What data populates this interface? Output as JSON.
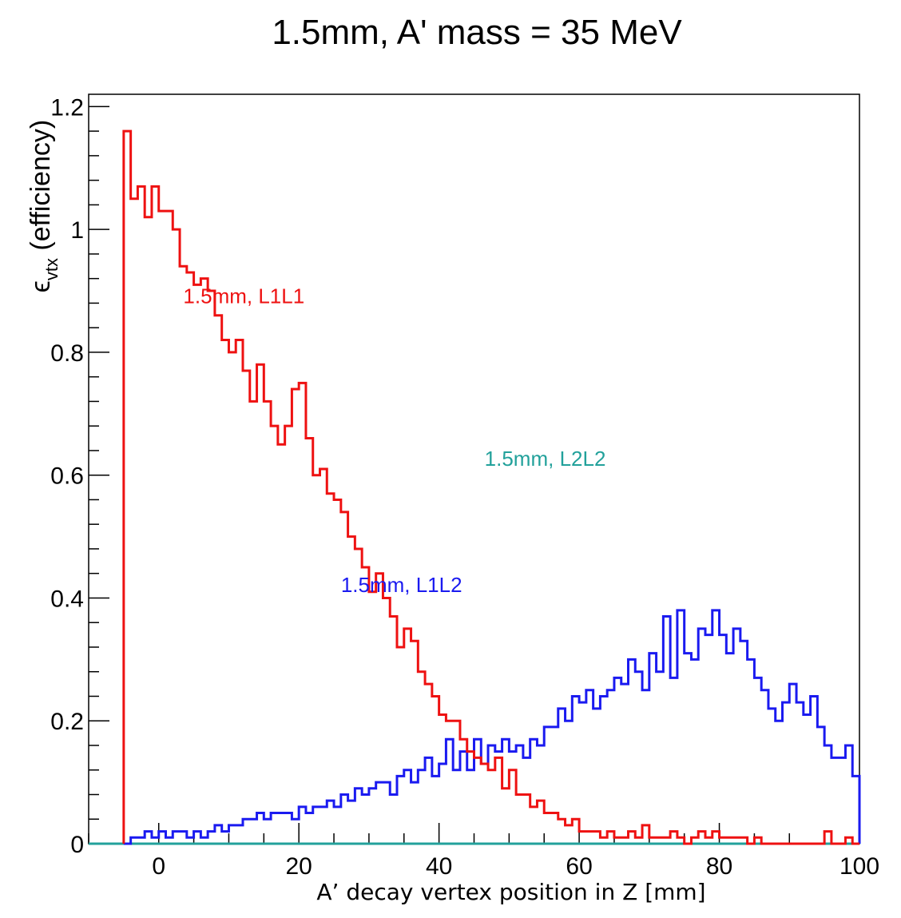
{
  "chart_data": {
    "type": "line",
    "title": "1.5mm, A' mass = 35 MeV",
    "xlabel": "A’ decay vertex position in Z [mm]",
    "ylabel": "ϵvtx (efficiency)",
    "ylabel_symbol": "ϵ",
    "ylabel_sub": "vtx",
    "ylabel_rest": " (efficiency)",
    "xlim": [
      -10,
      100
    ],
    "ylim": [
      0,
      1.22
    ],
    "x_ticks": [
      0,
      20,
      40,
      60,
      80,
      100
    ],
    "y_ticks": [
      0,
      0.2,
      0.4,
      0.6,
      0.8,
      1,
      1.2
    ],
    "y_tick_labels": [
      "0",
      "0.2",
      "0.4",
      "0.6",
      "0.8",
      "1",
      "1.2"
    ],
    "grid": false,
    "legend": "none",
    "colors": {
      "L1L1": "#ee1111",
      "L1L2": "#1a1af0",
      "L2L2": "#22a19b"
    },
    "annotations": [
      {
        "text": "1.5mm, L1L1",
        "series": "L1L1",
        "x": 3.5,
        "y": 0.88
      },
      {
        "text": "1.5mm, L1L2",
        "series": "L1L2",
        "x": 26,
        "y": 0.41
      },
      {
        "text": "1.5mm, L2L2",
        "series": "L2L2",
        "x": 46.5,
        "y": 0.615
      }
    ],
    "series": [
      {
        "key": "L1L1",
        "x_start": -5,
        "bin_width": 1,
        "values": [
          1.16,
          1.05,
          1.07,
          1.02,
          1.07,
          1.03,
          1.03,
          1.0,
          0.94,
          0.93,
          0.91,
          0.92,
          0.9,
          0.86,
          0.82,
          0.8,
          0.82,
          0.77,
          0.72,
          0.78,
          0.72,
          0.68,
          0.65,
          0.68,
          0.74,
          0.75,
          0.66,
          0.6,
          0.61,
          0.57,
          0.56,
          0.54,
          0.5,
          0.48,
          0.45,
          0.41,
          0.44,
          0.4,
          0.37,
          0.32,
          0.35,
          0.33,
          0.28,
          0.26,
          0.24,
          0.21,
          0.2,
          0.2,
          0.17,
          0.15,
          0.14,
          0.13,
          0.12,
          0.14,
          0.09,
          0.12,
          0.08,
          0.08,
          0.06,
          0.07,
          0.05,
          0.05,
          0.04,
          0.03,
          0.04,
          0.02,
          0.02,
          0.02,
          0.01,
          0.02,
          0.01,
          0.01,
          0.02,
          0.01,
          0.03,
          0.01,
          0.01,
          0.01,
          0.02,
          0.01,
          0.0,
          0.01,
          0.02,
          0.01,
          0.02,
          0.01,
          0.01,
          0.01,
          0.01,
          0.0,
          0.01,
          0.0,
          0.0,
          0.0,
          0.0,
          0.0,
          0.0,
          0.0,
          0.0,
          0.0,
          0.02,
          0.0,
          0.0,
          0.01,
          0.0,
          0.0,
          0.0,
          0.0,
          0.01,
          0.0,
          0.0,
          0.0,
          0.0,
          0.01,
          0.0,
          0.02,
          0.0,
          0.0,
          0.01,
          0.0,
          0.0,
          0.0,
          0.0,
          0.01,
          0.0,
          0.01,
          0.0,
          0.0,
          0.0,
          0.0,
          0.0,
          0.0,
          0.0,
          0.0,
          0.03,
          0.0,
          0.01,
          0.0,
          0.0,
          0.0,
          0.0,
          0.0,
          0.0,
          0.02,
          0.0,
          0.0,
          0.0,
          0.0,
          0.0,
          0.0,
          0.0,
          0.0,
          0.0,
          0.0,
          0.0,
          0.0,
          0.0,
          0.0,
          0.0,
          0.0,
          0.0,
          0.0,
          0.0,
          0.0,
          0.0,
          0.0,
          0.0,
          0.0,
          0.0,
          0.0,
          0.0,
          0.0,
          0.0,
          0.0,
          0.0,
          0.0,
          0.0,
          0.0,
          0.0,
          0.0,
          0.0,
          0.0,
          0.0,
          0.0,
          0.0,
          0.0,
          0.0,
          0.0,
          0.0,
          0.0,
          0.0,
          0.0,
          0.0,
          0.0,
          0.0,
          0.0,
          0.0,
          0.0,
          0.0,
          0.0,
          0.0,
          0.0,
          0.0,
          0.0,
          0.0,
          0.0,
          0.0,
          0.0,
          0.0,
          0.0,
          0.0,
          0.0,
          0.0,
          0.0,
          0.0,
          0.0,
          0.0,
          0.0,
          0.0,
          0.0,
          0.0,
          0.0,
          0.0,
          0.0
        ]
      },
      {
        "key": "L1L2",
        "x_start": -5,
        "bin_width": 1,
        "values": [
          0.0,
          0.01,
          0.01,
          0.02,
          0.01,
          0.02,
          0.01,
          0.02,
          0.02,
          0.01,
          0.02,
          0.01,
          0.02,
          0.03,
          0.02,
          0.03,
          0.03,
          0.04,
          0.04,
          0.05,
          0.04,
          0.05,
          0.05,
          0.05,
          0.04,
          0.06,
          0.05,
          0.06,
          0.06,
          0.07,
          0.06,
          0.08,
          0.07,
          0.09,
          0.08,
          0.09,
          0.1,
          0.1,
          0.08,
          0.11,
          0.12,
          0.1,
          0.12,
          0.14,
          0.11,
          0.13,
          0.17,
          0.12,
          0.15,
          0.12,
          0.17,
          0.13,
          0.16,
          0.15,
          0.17,
          0.15,
          0.16,
          0.14,
          0.17,
          0.16,
          0.19,
          0.19,
          0.22,
          0.2,
          0.24,
          0.23,
          0.25,
          0.22,
          0.24,
          0.25,
          0.27,
          0.26,
          0.3,
          0.28,
          0.25,
          0.31,
          0.28,
          0.37,
          0.27,
          0.38,
          0.31,
          0.3,
          0.35,
          0.34,
          0.38,
          0.34,
          0.31,
          0.35,
          0.33,
          0.3,
          0.27,
          0.25,
          0.22,
          0.2,
          0.23,
          0.26,
          0.23,
          0.21,
          0.24,
          0.19,
          0.16,
          0.14,
          0.14,
          0.16,
          0.11,
          0.15,
          0.1,
          0.09,
          0.11,
          0.08,
          0.09,
          0.07,
          0.05,
          0.06,
          0.05,
          0.04,
          0.03,
          0.04,
          0.03,
          0.04,
          0.02,
          0.02,
          0.03,
          0.01,
          0.01,
          0.02,
          0.02,
          0.01,
          0.01,
          0.01,
          0.01,
          0.01,
          0.01,
          0.01,
          0.0,
          0.01,
          0.0,
          0.0,
          0.0,
          0.0,
          0.0,
          0.0,
          0.0,
          0.0,
          0.0,
          0.0,
          0.0,
          0.0,
          0.0,
          0.0,
          0.0,
          0.0,
          0.0,
          0.0,
          0.0,
          0.02,
          0.0,
          0.0,
          0.0,
          0.0,
          0.0,
          0.0,
          0.0,
          0.0,
          0.0,
          0.0,
          0.0,
          0.0,
          0.0,
          0.0,
          0.0,
          0.0,
          0.0,
          0.0,
          0.0,
          0.0,
          0.0,
          0.0,
          0.0,
          0.0,
          0.0,
          0.0,
          0.0,
          0.0,
          0.0,
          0.0,
          0.0,
          0.0,
          0.0,
          0.0,
          0.0,
          0.0,
          0.0,
          0.0,
          0.0,
          0.0,
          0.0,
          0.0,
          0.0,
          0.0,
          0.0,
          0.0,
          0.0,
          0.0,
          0.0,
          0.0,
          0.0,
          0.0,
          0.0,
          0.0,
          0.0,
          0.0,
          0.0,
          0.0,
          0.0,
          0.0,
          0.0
        ]
      },
      {
        "key": "L2L2",
        "x_start": -5,
        "bin_width": 1,
        "values": [
          0,
          0,
          0,
          0,
          0,
          0,
          0,
          0,
          0,
          0,
          0,
          0,
          0,
          0,
          0,
          0,
          0,
          0,
          0,
          0,
          0,
          0,
          0,
          0,
          0,
          0,
          0,
          0,
          0,
          0,
          0,
          0,
          0,
          0,
          0,
          0,
          0,
          0,
          0,
          0,
          0,
          0,
          0,
          0,
          0,
          0,
          0,
          0,
          0,
          0,
          0,
          0,
          0,
          0,
          0,
          0,
          0,
          0,
          0,
          0,
          0,
          0,
          0,
          0,
          0,
          0,
          0,
          0,
          0,
          0,
          0,
          0,
          0,
          0,
          0,
          0,
          0,
          0,
          0,
          0,
          0,
          0,
          0,
          0,
          0,
          0,
          0,
          0,
          0,
          0,
          0,
          0,
          0,
          0,
          0,
          0,
          0,
          0,
          0,
          0,
          0,
          0,
          0,
          0,
          0,
          0,
          0,
          0,
          0,
          0,
          0,
          0,
          0,
          0,
          0,
          0,
          0,
          0,
          0,
          0,
          0,
          0,
          0,
          0,
          0,
          0,
          0,
          0,
          0,
          0,
          0,
          0,
          0,
          0,
          0,
          0,
          0,
          0,
          0,
          0,
          0,
          0,
          0,
          0,
          0,
          0,
          0,
          0,
          0,
          0,
          0,
          0,
          0,
          0,
          0,
          0,
          0,
          0,
          0,
          0,
          0,
          0,
          0,
          0,
          0,
          0,
          0,
          0,
          0,
          0,
          0,
          0,
          0,
          0,
          0,
          0,
          0,
          0,
          0,
          0,
          0,
          0,
          0,
          0,
          0,
          0,
          0,
          0,
          0,
          0,
          0,
          0,
          0,
          0,
          0,
          0,
          0,
          0,
          0,
          0,
          0,
          0,
          0,
          0,
          0,
          0,
          0,
          0,
          0,
          0,
          0,
          0,
          0,
          0,
          0,
          0,
          0,
          0,
          0,
          0,
          0
        ]
      }
    ]
  }
}
